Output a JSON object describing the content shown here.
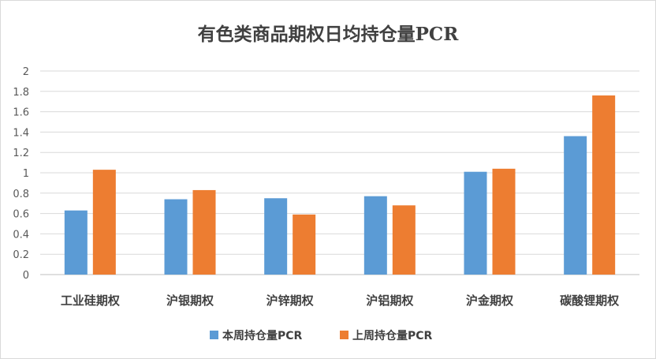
{
  "chart_data": {
    "type": "bar",
    "title": "有色类商品期权日均持仓量PCR",
    "categories": [
      "工业硅期权",
      "沪银期权",
      "沪锌期权",
      "沪铝期权",
      "沪金期权",
      "碳酸锂期权"
    ],
    "series": [
      {
        "name": "本周持仓量PCR",
        "color": "#5b9bd5",
        "values": [
          0.63,
          0.74,
          0.75,
          0.77,
          1.01,
          1.36
        ]
      },
      {
        "name": "上周持仓量PCR",
        "color": "#ed7d31",
        "values": [
          1.03,
          0.83,
          0.59,
          0.68,
          1.04,
          1.76
        ]
      }
    ],
    "ylim": [
      0,
      2
    ],
    "yticks": [
      "0",
      "0.2",
      "0.4",
      "0.6",
      "0.8",
      "1",
      "1.2",
      "1.4",
      "1.6",
      "1.8",
      "2"
    ],
    "ytick_values": [
      0,
      0.2,
      0.4,
      0.6,
      0.8,
      1,
      1.2,
      1.4,
      1.6,
      1.8,
      2
    ],
    "grid": true,
    "legend_position": "bottom"
  }
}
